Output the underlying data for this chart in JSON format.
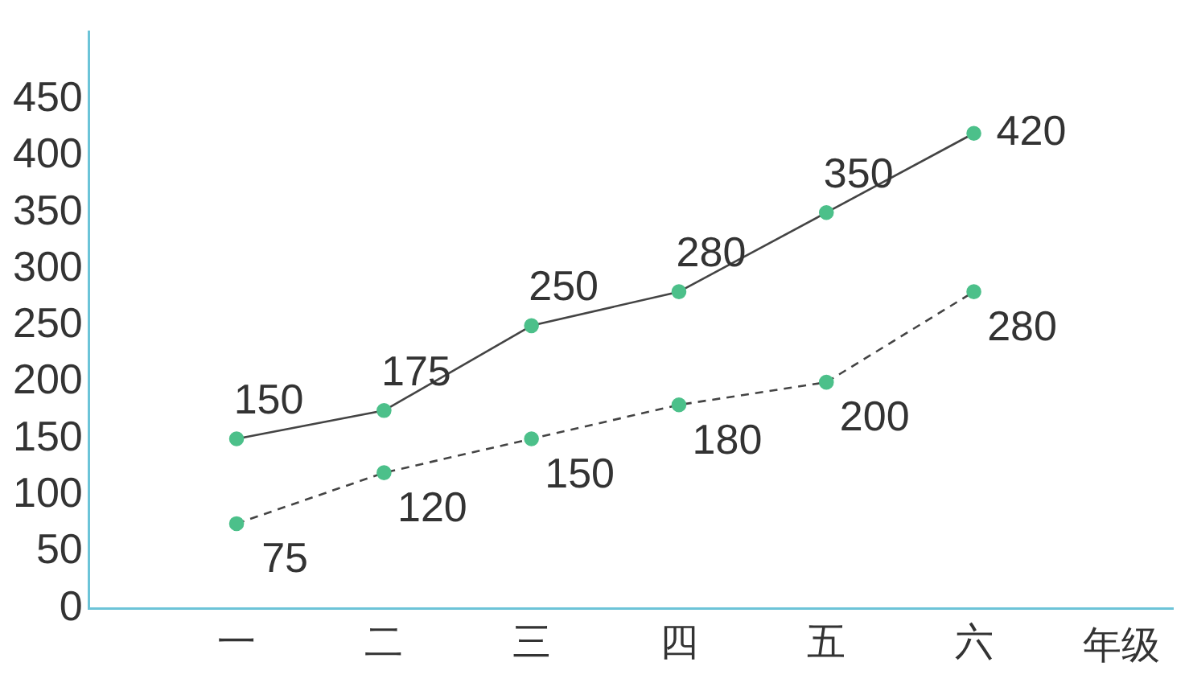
{
  "chart_data": {
    "type": "line",
    "xlabel": "年级",
    "categories": [
      "一",
      "二",
      "三",
      "四",
      "五",
      "六"
    ],
    "series": [
      {
        "color": "#4cc08a",
        "values": [
          150,
          175,
          250,
          280,
          350,
          420
        ],
        "line_style": "solid"
      },
      {
        "color": "#4cc08a",
        "values": [
          75,
          120,
          150,
          180,
          200,
          280
        ],
        "line_style": "dashed"
      }
    ],
    "marker": "circle",
    "ylim": [
      0,
      510
    ],
    "yticks": [
      0,
      50,
      100,
      150,
      200,
      250,
      300,
      350,
      400,
      450
    ],
    "grid": false,
    "legend": false,
    "data_labels": true
  }
}
